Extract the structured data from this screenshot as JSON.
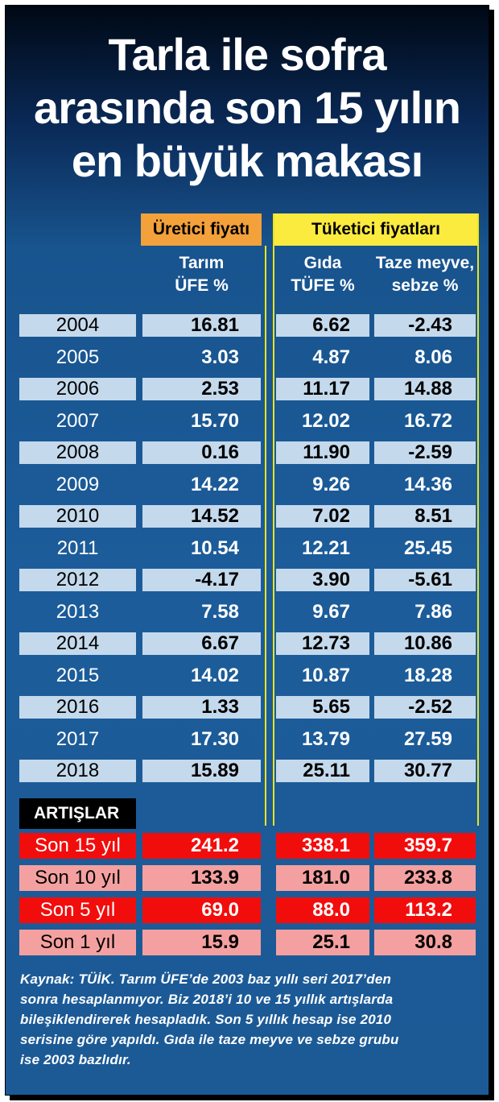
{
  "title_lines": [
    "Tarla ile sofra",
    "arasında son 15 yılın",
    "en büyük makası"
  ],
  "header_groups": {
    "producer": "Üretici fiyatı",
    "consumer": "Tüketici fiyatları"
  },
  "column_headers": {
    "ufe": [
      "Tarım",
      "ÜFE %"
    ],
    "tufe": [
      "Gıda",
      "TÜFE %"
    ],
    "fresh": [
      "Taze meyve,",
      "sebze %"
    ]
  },
  "increases_label": "ARTIŞLAR %",
  "colors": {
    "orange": "#f3a13a",
    "yellow": "#fbeb3f",
    "red": "#f20d0d",
    "pink": "#f5a0a0",
    "light_row": "#c4d9ec"
  },
  "chart_data": {
    "type": "table",
    "title": "Tarla ile sofra arasında son 15 yılın en büyük makası",
    "columns": [
      "Tarım ÜFE %",
      "Gıda TÜFE %",
      "Taze meyve, sebze %"
    ],
    "rows": [
      {
        "label": "2004",
        "values": [
          "16.81",
          "6.62",
          "-2.43"
        ]
      },
      {
        "label": "2005",
        "values": [
          "3.03",
          "4.87",
          "8.06"
        ]
      },
      {
        "label": "2006",
        "values": [
          "2.53",
          "11.17",
          "14.88"
        ]
      },
      {
        "label": "2007",
        "values": [
          "15.70",
          "12.02",
          "16.72"
        ]
      },
      {
        "label": "2008",
        "values": [
          "0.16",
          "11.90",
          "-2.59"
        ]
      },
      {
        "label": "2009",
        "values": [
          "14.22",
          "9.26",
          "14.36"
        ]
      },
      {
        "label": "2010",
        "values": [
          "14.52",
          "7.02",
          "8.51"
        ]
      },
      {
        "label": "2011",
        "values": [
          "10.54",
          "12.21",
          "25.45"
        ]
      },
      {
        "label": "2012",
        "values": [
          "-4.17",
          "3.90",
          "-5.61"
        ]
      },
      {
        "label": "2013",
        "values": [
          "7.58",
          "9.67",
          "7.86"
        ]
      },
      {
        "label": "2014",
        "values": [
          "6.67",
          "12.73",
          "10.86"
        ]
      },
      {
        "label": "2015",
        "values": [
          "14.02",
          "10.87",
          "18.28"
        ]
      },
      {
        "label": "2016",
        "values": [
          "1.33",
          "5.65",
          "-2.52"
        ]
      },
      {
        "label": "2017",
        "values": [
          "17.30",
          "13.79",
          "27.59"
        ]
      },
      {
        "label": "2018",
        "values": [
          "15.89",
          "25.11",
          "30.77"
        ]
      }
    ],
    "increases": [
      {
        "label": "Son 15 yıl",
        "values": [
          "241.2",
          "338.1",
          "359.7"
        ]
      },
      {
        "label": "Son 10 yıl",
        "values": [
          "133.9",
          "181.0",
          "233.8"
        ]
      },
      {
        "label": "Son 5 yıl",
        "values": [
          "69.0",
          "88.0",
          "113.2"
        ]
      },
      {
        "label": "Son 1 yıl",
        "values": [
          "15.9",
          "25.1",
          "30.8"
        ]
      }
    ]
  },
  "footer_lines": [
    "Kaynak: TÜİK. Tarım ÜFE’de 2003 baz yıllı seri 2017’den",
    "sonra hesaplanmıyor. Biz 2018’i 10 ve 15 yıllık artışlarda",
    "bileşiklendirerek hesapladık. Son 5 yıllık hesap ise 2010",
    "serisine göre yapıldı. Gıda ile taze meyve ve sebze grubu",
    "ise 2003 bazlıdır."
  ]
}
